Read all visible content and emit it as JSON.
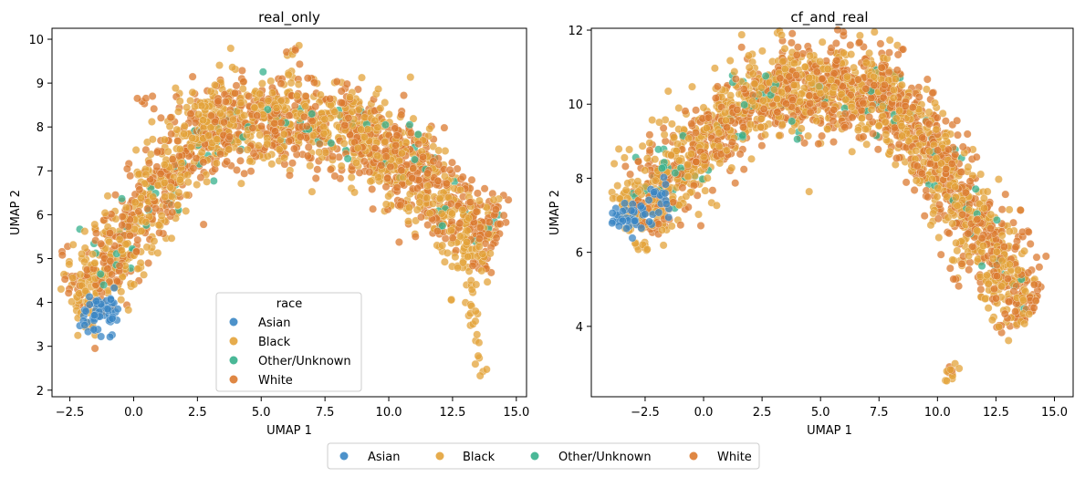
{
  "figure": {
    "legend": {
      "placement": "bottom-center",
      "entries": [
        "Asian",
        "Black",
        "Other/Unknown",
        "White"
      ]
    }
  },
  "colors": {
    "Asian": "#3a86c4",
    "Black": "#e3a33a",
    "Other/Unknown": "#36b08c",
    "White": "#db7a30"
  },
  "chart_data": [
    {
      "type": "scatter",
      "title": "real_only",
      "xlabel": "UMAP 1",
      "ylabel": "UMAP 2",
      "xlim": [
        -3.2,
        15.4
      ],
      "ylim": [
        1.85,
        10.25
      ],
      "xticks": [
        -2.5,
        0.0,
        2.5,
        5.0,
        7.5,
        10.0,
        12.5,
        15.0
      ],
      "xtick_labels": [
        "−2.5",
        "0.0",
        "2.5",
        "5.0",
        "7.5",
        "10.0",
        "12.5",
        "15.0"
      ],
      "yticks": [
        2,
        3,
        4,
        5,
        6,
        7,
        8,
        9,
        10
      ],
      "ytick_labels": [
        "2",
        "3",
        "4",
        "5",
        "6",
        "7",
        "8",
        "9",
        "10"
      ],
      "grid": false,
      "legend": {
        "title": "race",
        "placement": "lower-center",
        "entries": [
          "Asian",
          "Black",
          "Other/Unknown",
          "White"
        ]
      },
      "series": [
        {
          "name": "Asian",
          "clusters": [
            {
              "x": [
                -2.0,
                -0.6
              ],
              "y": [
                2.8,
                4.6
              ],
              "n": 55,
              "shape": "band",
              "x0": -2.0,
              "y0": 3.5,
              "x1": -0.7,
              "y1": 3.9,
              "spread": 0.5
            }
          ]
        },
        {
          "name": "Black",
          "arc": "left",
          "clusters": [
            {
              "x0": -2.3,
              "y0": 3.8,
              "x1": 3.2,
              "y1": 8.3,
              "n": 380,
              "spread": 1.1
            },
            {
              "x0": 3.0,
              "y0": 8.3,
              "x1": 9.0,
              "y1": 7.9,
              "n": 320,
              "spread": 1.1
            },
            {
              "x0": 9.0,
              "y0": 7.9,
              "x1": 14.0,
              "y1": 5.2,
              "n": 330,
              "spread": 1.2
            },
            {
              "x0": 13.2,
              "y0": 4.4,
              "x1": 13.6,
              "y1": 2.2,
              "n": 22,
              "spread": 0.15
            },
            {
              "x0": 6.1,
              "y0": 9.3,
              "x1": 6.3,
              "y1": 9.85,
              "n": 5,
              "spread": 0.08
            }
          ]
        },
        {
          "name": "Other/Unknown",
          "clusters": [
            {
              "x0": -1.5,
              "y0": 4.5,
              "x1": 3.5,
              "y1": 8.0,
              "n": 35,
              "spread": 1.0
            },
            {
              "x0": 3.5,
              "y0": 8.0,
              "x1": 9.5,
              "y1": 7.9,
              "n": 30,
              "spread": 1.0
            },
            {
              "x0": 9.5,
              "y0": 7.9,
              "x1": 14.0,
              "y1": 5.5,
              "n": 20,
              "spread": 1.0
            }
          ]
        },
        {
          "name": "White",
          "clusters": [
            {
              "x0": -2.3,
              "y0": 4.0,
              "x1": 3.2,
              "y1": 8.2,
              "n": 300,
              "spread": 1.1
            },
            {
              "x0": 3.0,
              "y0": 8.2,
              "x1": 9.0,
              "y1": 7.9,
              "n": 330,
              "spread": 1.1
            },
            {
              "x0": 9.0,
              "y0": 7.9,
              "x1": 14.3,
              "y1": 5.4,
              "n": 340,
              "spread": 1.2
            },
            {
              "x0": 0.1,
              "y0": 8.6,
              "x1": 0.8,
              "y1": 8.65,
              "n": 6,
              "spread": 0.08
            },
            {
              "x0": 6.1,
              "y0": 9.7,
              "x1": 6.25,
              "y1": 9.8,
              "n": 3,
              "spread": 0.05
            }
          ]
        }
      ]
    },
    {
      "type": "scatter",
      "title": "cf_and_real",
      "xlabel": "UMAP 1",
      "ylabel": "UMAP 2",
      "xlim": [
        -4.8,
        15.8
      ],
      "ylim": [
        2.1,
        12.05
      ],
      "xticks": [
        -2.5,
        0.0,
        2.5,
        5.0,
        7.5,
        10.0,
        12.5,
        15.0
      ],
      "xtick_labels": [
        "−2.5",
        "0.0",
        "2.5",
        "5.0",
        "7.5",
        "10.0",
        "12.5",
        "15.0"
      ],
      "yticks": [
        4,
        6,
        8,
        10,
        12
      ],
      "ytick_labels": [
        "4",
        "6",
        "8",
        "10",
        "12"
      ],
      "grid": false,
      "series": [
        {
          "name": "Asian",
          "clusters": [
            {
              "x0": -3.8,
              "y0": 6.7,
              "x1": -1.5,
              "y1": 7.6,
              "n": 55,
              "spread": 0.45
            }
          ]
        },
        {
          "name": "Black",
          "clusters": [
            {
              "x0": -3.5,
              "y0": 6.9,
              "x1": 3.0,
              "y1": 10.6,
              "n": 380,
              "spread": 1.3
            },
            {
              "x0": 3.0,
              "y0": 10.6,
              "x1": 8.5,
              "y1": 10.2,
              "n": 330,
              "spread": 1.3
            },
            {
              "x0": 8.5,
              "y0": 10.0,
              "x1": 13.8,
              "y1": 4.2,
              "n": 380,
              "spread": 1.3
            },
            {
              "x0": 10.4,
              "y0": 2.55,
              "x1": 10.8,
              "y1": 2.9,
              "n": 8,
              "spread": 0.1
            }
          ]
        },
        {
          "name": "Other/Unknown",
          "clusters": [
            {
              "x0": -3.0,
              "y0": 7.2,
              "x1": 3.0,
              "y1": 10.8,
              "n": 45,
              "spread": 1.2
            },
            {
              "x0": 3.0,
              "y0": 10.6,
              "x1": 8.5,
              "y1": 10.2,
              "n": 30,
              "spread": 1.2
            },
            {
              "x0": 8.5,
              "y0": 10.0,
              "x1": 13.9,
              "y1": 4.6,
              "n": 25,
              "spread": 1.2
            }
          ]
        },
        {
          "name": "White",
          "clusters": [
            {
              "x0": -3.0,
              "y0": 7.1,
              "x1": 3.0,
              "y1": 10.5,
              "n": 300,
              "spread": 1.3
            },
            {
              "x0": 3.0,
              "y0": 10.5,
              "x1": 8.5,
              "y1": 10.2,
              "n": 340,
              "spread": 1.3
            },
            {
              "x0": 8.5,
              "y0": 10.0,
              "x1": 14.0,
              "y1": 4.3,
              "n": 400,
              "spread": 1.3
            },
            {
              "x0": 10.5,
              "y0": 2.7,
              "x1": 10.9,
              "y1": 2.95,
              "n": 5,
              "spread": 0.08
            }
          ]
        }
      ]
    }
  ]
}
